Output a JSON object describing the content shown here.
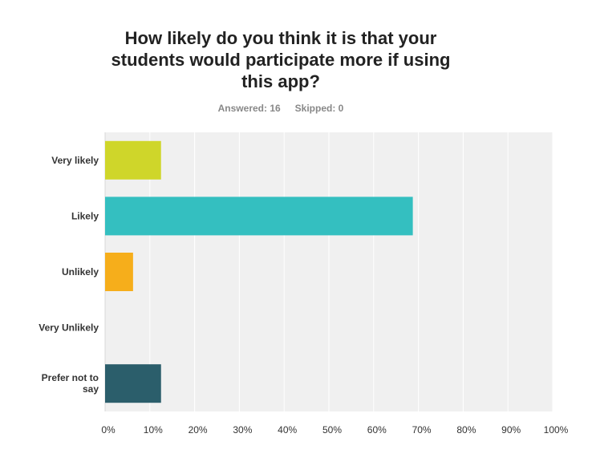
{
  "question": {
    "title_lines": [
      "How likely do you think it is that your",
      "students would participate more if using",
      "this app?"
    ]
  },
  "summary": {
    "answered_label": "Answered: 16",
    "skipped_label": "Skipped: 0"
  },
  "chart_data": {
    "type": "bar",
    "orientation": "horizontal",
    "title": "How likely do you think it is that your students would participate more if using this app?",
    "categories": [
      [
        "Very likely"
      ],
      [
        "Likely"
      ],
      [
        "Unlikely"
      ],
      [
        "Very Unlikely"
      ],
      [
        "Prefer not to",
        "say"
      ]
    ],
    "values": [
      12.5,
      68.75,
      6.25,
      0,
      12.5
    ],
    "colors": [
      "#cfd62a",
      "#34bfc0",
      "#f6ae1b",
      "#2c6fa1",
      "#2b5e6b"
    ],
    "xlim": [
      0,
      100
    ],
    "xticks": [
      "0%",
      "10%",
      "20%",
      "30%",
      "40%",
      "50%",
      "60%",
      "70%",
      "80%",
      "90%",
      "100%"
    ],
    "grid": true,
    "plot_background": "#f0f0f0",
    "gridline_color": "#ffffff"
  }
}
